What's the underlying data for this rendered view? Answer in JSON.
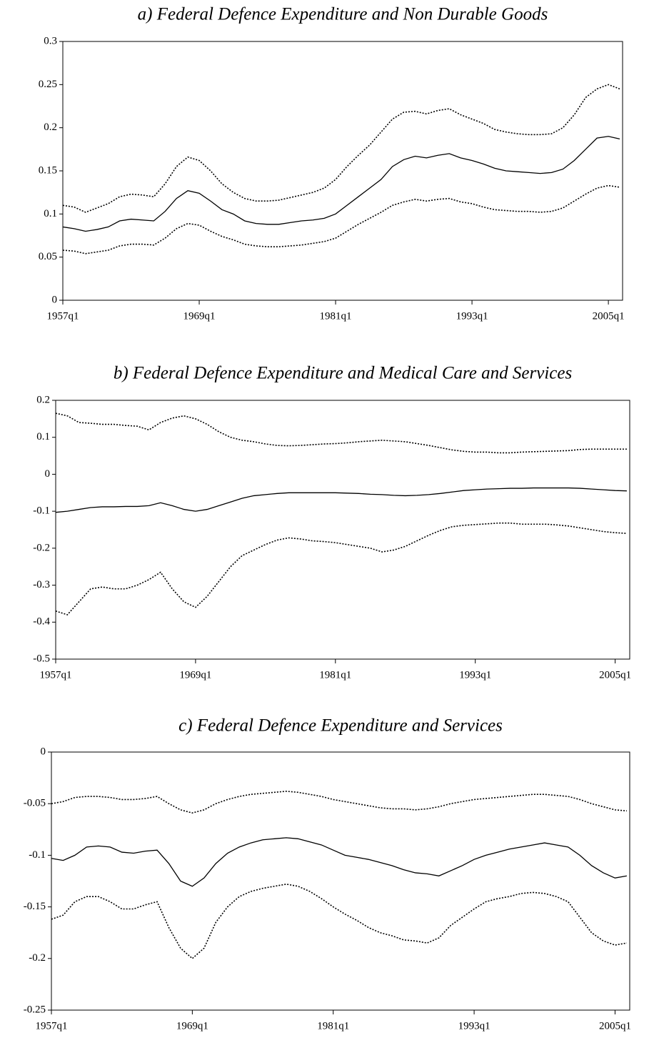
{
  "chart_data": [
    {
      "type": "line",
      "title": "a) Federal Defence Expenditure and Non Durable Goods",
      "x": [
        1957,
        1958,
        1959,
        1960,
        1961,
        1962,
        1963,
        1964,
        1965,
        1966,
        1967,
        1968,
        1969,
        1970,
        1971,
        1972,
        1973,
        1974,
        1975,
        1976,
        1977,
        1978,
        1979,
        1980,
        1981,
        1982,
        1983,
        1984,
        1985,
        1986,
        1987,
        1988,
        1989,
        1990,
        1991,
        1992,
        1993,
        1994,
        1995,
        1996,
        1997,
        1998,
        1999,
        2000,
        2001,
        2002,
        2003,
        2004,
        2005,
        2006
      ],
      "xlim": [
        1957,
        2006.25
      ],
      "xticks": [
        {
          "value": 1957,
          "label": "1957q1"
        },
        {
          "value": 1969,
          "label": "1969q1"
        },
        {
          "value": 1981,
          "label": "1981q1"
        },
        {
          "value": 1993,
          "label": "1993q1"
        },
        {
          "value": 2005,
          "label": "2005q1"
        }
      ],
      "ylim": [
        0,
        0.3
      ],
      "yticks": [
        0,
        0.05,
        0.1,
        0.15,
        0.2,
        0.25,
        0.3
      ],
      "series": [
        {
          "color": "#000000",
          "style": "solid",
          "values": [
            0.085,
            0.083,
            0.08,
            0.082,
            0.085,
            0.092,
            0.094,
            0.093,
            0.092,
            0.103,
            0.118,
            0.127,
            0.124,
            0.115,
            0.105,
            0.1,
            0.092,
            0.089,
            0.088,
            0.088,
            0.09,
            0.092,
            0.093,
            0.095,
            0.1,
            0.11,
            0.12,
            0.13,
            0.14,
            0.155,
            0.163,
            0.167,
            0.165,
            0.168,
            0.17,
            0.165,
            0.162,
            0.158,
            0.153,
            0.15,
            0.149,
            0.148,
            0.147,
            0.148,
            0.152,
            0.162,
            0.175,
            0.188,
            0.19,
            0.187
          ]
        },
        {
          "color": "#000000",
          "style": "dotted",
          "values": [
            0.11,
            0.108,
            0.102,
            0.107,
            0.112,
            0.12,
            0.123,
            0.122,
            0.12,
            0.135,
            0.155,
            0.166,
            0.162,
            0.15,
            0.135,
            0.125,
            0.118,
            0.115,
            0.115,
            0.116,
            0.119,
            0.122,
            0.125,
            0.13,
            0.14,
            0.155,
            0.168,
            0.18,
            0.195,
            0.21,
            0.218,
            0.219,
            0.216,
            0.22,
            0.222,
            0.215,
            0.21,
            0.205,
            0.198,
            0.195,
            0.193,
            0.192,
            0.192,
            0.193,
            0.2,
            0.215,
            0.235,
            0.245,
            0.25,
            0.245
          ]
        },
        {
          "color": "#000000",
          "style": "dotted",
          "values": [
            0.058,
            0.057,
            0.054,
            0.056,
            0.058,
            0.063,
            0.065,
            0.065,
            0.064,
            0.072,
            0.083,
            0.089,
            0.087,
            0.08,
            0.074,
            0.07,
            0.065,
            0.063,
            0.062,
            0.062,
            0.063,
            0.064,
            0.066,
            0.068,
            0.072,
            0.08,
            0.088,
            0.095,
            0.102,
            0.11,
            0.114,
            0.117,
            0.115,
            0.117,
            0.118,
            0.114,
            0.112,
            0.108,
            0.105,
            0.104,
            0.103,
            0.103,
            0.102,
            0.103,
            0.107,
            0.115,
            0.123,
            0.13,
            0.133,
            0.131
          ]
        }
      ]
    },
    {
      "type": "line",
      "title": "b) Federal Defence Expenditure and Medical Care and Services",
      "x": [
        1957,
        1958,
        1959,
        1960,
        1961,
        1962,
        1963,
        1964,
        1965,
        1966,
        1967,
        1968,
        1969,
        1970,
        1971,
        1972,
        1973,
        1974,
        1975,
        1976,
        1977,
        1978,
        1979,
        1980,
        1981,
        1982,
        1983,
        1984,
        1985,
        1986,
        1987,
        1988,
        1989,
        1990,
        1991,
        1992,
        1993,
        1994,
        1995,
        1996,
        1997,
        1998,
        1999,
        2000,
        2001,
        2002,
        2003,
        2004,
        2005,
        2006
      ],
      "xlim": [
        1957,
        2006.25
      ],
      "xticks": [
        {
          "value": 1957,
          "label": "1957q1"
        },
        {
          "value": 1969,
          "label": "1969q1"
        },
        {
          "value": 1981,
          "label": "1981q1"
        },
        {
          "value": 1993,
          "label": "1993q1"
        },
        {
          "value": 2005,
          "label": "2005q1"
        }
      ],
      "ylim": [
        -0.5,
        0.2
      ],
      "yticks": [
        -0.5,
        -0.4,
        -0.3,
        -0.2,
        -0.1,
        0,
        0.1,
        0.2
      ],
      "series": [
        {
          "color": "#000000",
          "style": "solid",
          "values": [
            -0.103,
            -0.1,
            -0.095,
            -0.09,
            -0.088,
            -0.088,
            -0.087,
            -0.087,
            -0.085,
            -0.077,
            -0.085,
            -0.095,
            -0.1,
            -0.095,
            -0.085,
            -0.075,
            -0.065,
            -0.058,
            -0.055,
            -0.052,
            -0.05,
            -0.05,
            -0.05,
            -0.05,
            -0.05,
            -0.051,
            -0.052,
            -0.054,
            -0.055,
            -0.057,
            -0.058,
            -0.057,
            -0.055,
            -0.052,
            -0.048,
            -0.044,
            -0.042,
            -0.04,
            -0.039,
            -0.038,
            -0.038,
            -0.037,
            -0.037,
            -0.037,
            -0.037,
            -0.038,
            -0.04,
            -0.042,
            -0.044,
            -0.045
          ]
        },
        {
          "color": "#000000",
          "style": "dotted",
          "values": [
            0.165,
            0.158,
            0.14,
            0.138,
            0.135,
            0.135,
            0.132,
            0.13,
            0.12,
            0.14,
            0.152,
            0.158,
            0.15,
            0.135,
            0.115,
            0.1,
            0.092,
            0.088,
            0.082,
            0.078,
            0.077,
            0.078,
            0.08,
            0.082,
            0.083,
            0.085,
            0.088,
            0.09,
            0.092,
            0.09,
            0.088,
            0.083,
            0.078,
            0.072,
            0.066,
            0.062,
            0.06,
            0.06,
            0.058,
            0.058,
            0.06,
            0.061,
            0.062,
            0.063,
            0.064,
            0.067,
            0.068,
            0.068,
            0.068,
            0.068
          ]
        },
        {
          "color": "#000000",
          "style": "dotted",
          "values": [
            -0.37,
            -0.38,
            -0.345,
            -0.31,
            -0.305,
            -0.31,
            -0.31,
            -0.3,
            -0.285,
            -0.265,
            -0.31,
            -0.345,
            -0.36,
            -0.33,
            -0.29,
            -0.25,
            -0.22,
            -0.205,
            -0.19,
            -0.178,
            -0.172,
            -0.175,
            -0.18,
            -0.182,
            -0.185,
            -0.19,
            -0.195,
            -0.2,
            -0.21,
            -0.205,
            -0.195,
            -0.18,
            -0.165,
            -0.152,
            -0.142,
            -0.138,
            -0.136,
            -0.134,
            -0.132,
            -0.132,
            -0.135,
            -0.135,
            -0.135,
            -0.137,
            -0.14,
            -0.145,
            -0.15,
            -0.155,
            -0.158,
            -0.16
          ]
        }
      ]
    },
    {
      "type": "line",
      "title": "c) Federal Defence Expenditure and Services",
      "x": [
        1957,
        1958,
        1959,
        1960,
        1961,
        1962,
        1963,
        1964,
        1965,
        1966,
        1967,
        1968,
        1969,
        1970,
        1971,
        1972,
        1973,
        1974,
        1975,
        1976,
        1977,
        1978,
        1979,
        1980,
        1981,
        1982,
        1983,
        1984,
        1985,
        1986,
        1987,
        1988,
        1989,
        1990,
        1991,
        1992,
        1993,
        1994,
        1995,
        1996,
        1997,
        1998,
        1999,
        2000,
        2001,
        2002,
        2003,
        2004,
        2005,
        2006
      ],
      "xlim": [
        1957,
        2006.25
      ],
      "xticks": [
        {
          "value": 1957,
          "label": "1957q1"
        },
        {
          "value": 1969,
          "label": "1969q1"
        },
        {
          "value": 1981,
          "label": "1981q1"
        },
        {
          "value": 1993,
          "label": "1993q1"
        },
        {
          "value": 2005,
          "label": "2005q1"
        }
      ],
      "ylim": [
        -0.25,
        0
      ],
      "yticks": [
        -0.25,
        -0.2,
        -0.15,
        -0.1,
        -0.05,
        0
      ],
      "series": [
        {
          "color": "#000000",
          "style": "solid",
          "values": [
            -0.103,
            -0.105,
            -0.1,
            -0.092,
            -0.091,
            -0.092,
            -0.097,
            -0.098,
            -0.096,
            -0.095,
            -0.108,
            -0.125,
            -0.13,
            -0.122,
            -0.108,
            -0.098,
            -0.092,
            -0.088,
            -0.085,
            -0.084,
            -0.083,
            -0.084,
            -0.087,
            -0.09,
            -0.095,
            -0.1,
            -0.102,
            -0.104,
            -0.107,
            -0.11,
            -0.114,
            -0.117,
            -0.118,
            -0.12,
            -0.115,
            -0.11,
            -0.104,
            -0.1,
            -0.097,
            -0.094,
            -0.092,
            -0.09,
            -0.088,
            -0.09,
            -0.092,
            -0.1,
            -0.11,
            -0.117,
            -0.122,
            -0.12
          ]
        },
        {
          "color": "#000000",
          "style": "dotted",
          "values": [
            -0.05,
            -0.048,
            -0.044,
            -0.043,
            -0.043,
            -0.044,
            -0.046,
            -0.046,
            -0.045,
            -0.043,
            -0.05,
            -0.056,
            -0.059,
            -0.056,
            -0.05,
            -0.046,
            -0.043,
            -0.041,
            -0.04,
            -0.039,
            -0.038,
            -0.039,
            -0.041,
            -0.043,
            -0.046,
            -0.048,
            -0.05,
            -0.052,
            -0.054,
            -0.055,
            -0.055,
            -0.056,
            -0.055,
            -0.053,
            -0.05,
            -0.048,
            -0.046,
            -0.045,
            -0.044,
            -0.043,
            -0.042,
            -0.041,
            -0.041,
            -0.042,
            -0.043,
            -0.046,
            -0.05,
            -0.053,
            -0.056,
            -0.057
          ]
        },
        {
          "color": "#000000",
          "style": "dotted",
          "values": [
            -0.162,
            -0.158,
            -0.145,
            -0.14,
            -0.14,
            -0.145,
            -0.152,
            -0.152,
            -0.148,
            -0.145,
            -0.17,
            -0.19,
            -0.2,
            -0.19,
            -0.165,
            -0.15,
            -0.14,
            -0.135,
            -0.132,
            -0.13,
            -0.128,
            -0.13,
            -0.135,
            -0.142,
            -0.15,
            -0.157,
            -0.163,
            -0.17,
            -0.175,
            -0.178,
            -0.182,
            -0.183,
            -0.185,
            -0.18,
            -0.168,
            -0.16,
            -0.152,
            -0.145,
            -0.142,
            -0.14,
            -0.137,
            -0.136,
            -0.137,
            -0.14,
            -0.145,
            -0.16,
            -0.175,
            -0.183,
            -0.187,
            -0.185
          ]
        }
      ]
    }
  ]
}
